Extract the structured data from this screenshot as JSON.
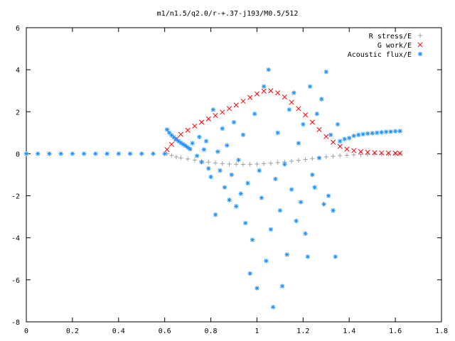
{
  "chart_data": {
    "type": "scatter",
    "title": "m1/n1.5/q2.0/r-+.37-j193/M0.5/512",
    "xlabel": "",
    "ylabel": "",
    "xlim": [
      0,
      1.8
    ],
    "ylim": [
      -8,
      6
    ],
    "x_ticks": [
      "0",
      "0.2",
      "0.4",
      "0.6",
      "0.8",
      "1",
      "1.2",
      "1.4",
      "1.6",
      "1.8"
    ],
    "y_ticks": [
      "6",
      "4",
      "2",
      "0",
      "-2",
      "-4",
      "-6",
      "-8"
    ],
    "grid": false,
    "legend_position": "top-right",
    "series": [
      {
        "name": "R stress/E",
        "marker": "+",
        "color": "#a0a0a0",
        "points": [
          [
            0.61,
            0.0
          ],
          [
            0.63,
            -0.08
          ],
          [
            0.65,
            -0.15
          ],
          [
            0.67,
            -0.2
          ],
          [
            0.7,
            -0.25
          ],
          [
            0.73,
            -0.3
          ],
          [
            0.76,
            -0.35
          ],
          [
            0.79,
            -0.4
          ],
          [
            0.82,
            -0.44
          ],
          [
            0.85,
            -0.47
          ],
          [
            0.88,
            -0.49
          ],
          [
            0.91,
            -0.5
          ],
          [
            0.94,
            -0.51
          ],
          [
            0.97,
            -0.5
          ],
          [
            1.0,
            -0.49
          ],
          [
            1.03,
            -0.47
          ],
          [
            1.06,
            -0.45
          ],
          [
            1.09,
            -0.42
          ],
          [
            1.12,
            -0.39
          ],
          [
            1.15,
            -0.35
          ],
          [
            1.18,
            -0.31
          ],
          [
            1.21,
            -0.27
          ],
          [
            1.24,
            -0.23
          ],
          [
            1.27,
            -0.19
          ],
          [
            1.3,
            -0.15
          ],
          [
            1.33,
            -0.12
          ],
          [
            1.36,
            -0.09
          ],
          [
            1.39,
            -0.07
          ],
          [
            1.42,
            -0.05
          ],
          [
            1.45,
            -0.04
          ],
          [
            1.48,
            -0.03
          ],
          [
            1.51,
            -0.02
          ],
          [
            1.54,
            -0.02
          ],
          [
            1.57,
            -0.01
          ],
          [
            1.6,
            -0.01
          ],
          [
            1.62,
            0.0
          ]
        ]
      },
      {
        "name": "G work/E",
        "marker": "x",
        "color": "#ff0000",
        "points": [
          [
            0.61,
            0.2
          ],
          [
            0.63,
            0.45
          ],
          [
            0.65,
            0.7
          ],
          [
            0.67,
            0.92
          ],
          [
            0.7,
            1.12
          ],
          [
            0.73,
            1.32
          ],
          [
            0.76,
            1.5
          ],
          [
            0.79,
            1.66
          ],
          [
            0.82,
            1.82
          ],
          [
            0.85,
            1.98
          ],
          [
            0.88,
            2.15
          ],
          [
            0.91,
            2.32
          ],
          [
            0.94,
            2.5
          ],
          [
            0.97,
            2.68
          ],
          [
            1.0,
            2.85
          ],
          [
            1.03,
            2.98
          ],
          [
            1.06,
            3.0
          ],
          [
            1.09,
            2.9
          ],
          [
            1.12,
            2.7
          ],
          [
            1.15,
            2.45
          ],
          [
            1.18,
            2.15
          ],
          [
            1.21,
            1.85
          ],
          [
            1.24,
            1.5
          ],
          [
            1.27,
            1.15
          ],
          [
            1.3,
            0.82
          ],
          [
            1.33,
            0.55
          ],
          [
            1.36,
            0.35
          ],
          [
            1.39,
            0.22
          ],
          [
            1.42,
            0.15
          ],
          [
            1.45,
            0.1
          ],
          [
            1.48,
            0.07
          ],
          [
            1.51,
            0.05
          ],
          [
            1.54,
            0.04
          ],
          [
            1.57,
            0.03
          ],
          [
            1.6,
            0.03
          ],
          [
            1.62,
            0.02
          ]
        ]
      },
      {
        "name": "Acoustic flux/E",
        "marker": "*",
        "color": "#1e90ff",
        "points": [
          [
            0.0,
            0.0
          ],
          [
            0.05,
            0.0
          ],
          [
            0.1,
            0.0
          ],
          [
            0.15,
            0.0
          ],
          [
            0.2,
            0.0
          ],
          [
            0.25,
            0.0
          ],
          [
            0.3,
            0.0
          ],
          [
            0.35,
            0.0
          ],
          [
            0.4,
            0.0
          ],
          [
            0.45,
            0.0
          ],
          [
            0.5,
            0.0
          ],
          [
            0.55,
            0.0
          ],
          [
            0.6,
            0.0
          ],
          [
            0.61,
            1.15
          ],
          [
            0.62,
            1.0
          ],
          [
            0.63,
            0.88
          ],
          [
            0.64,
            0.78
          ],
          [
            0.65,
            0.68
          ],
          [
            0.66,
            0.6
          ],
          [
            0.67,
            0.52
          ],
          [
            0.68,
            0.45
          ],
          [
            0.69,
            0.38
          ],
          [
            0.7,
            0.3
          ],
          [
            0.71,
            0.22
          ],
          [
            0.72,
            0.5
          ],
          [
            0.74,
            -0.1
          ],
          [
            0.75,
            0.8
          ],
          [
            0.76,
            -0.4
          ],
          [
            0.77,
            0.2
          ],
          [
            0.78,
            0.6
          ],
          [
            0.79,
            -0.7
          ],
          [
            0.8,
            -1.1
          ],
          [
            0.81,
            2.1
          ],
          [
            0.82,
            -2.9
          ],
          [
            0.83,
            0.1
          ],
          [
            0.84,
            -0.8
          ],
          [
            0.85,
            1.2
          ],
          [
            0.86,
            -1.6
          ],
          [
            0.87,
            0.4
          ],
          [
            0.88,
            -2.2
          ],
          [
            0.89,
            -1.0
          ],
          [
            0.9,
            1.5
          ],
          [
            0.91,
            -2.5
          ],
          [
            0.92,
            -0.3
          ],
          [
            0.93,
            -1.9
          ],
          [
            0.94,
            0.9
          ],
          [
            0.95,
            -3.3
          ],
          [
            0.96,
            -1.4
          ],
          [
            0.97,
            -5.7
          ],
          [
            0.98,
            -4.1
          ],
          [
            0.99,
            1.9
          ],
          [
            1.0,
            -6.4
          ],
          [
            1.01,
            -0.8
          ],
          [
            1.02,
            -2.1
          ],
          [
            1.03,
            3.2
          ],
          [
            1.04,
            -5.1
          ],
          [
            1.05,
            4.0
          ],
          [
            1.06,
            -3.6
          ],
          [
            1.07,
            -7.3
          ],
          [
            1.08,
            -1.2
          ],
          [
            1.09,
            1.0
          ],
          [
            1.1,
            -2.7
          ],
          [
            1.11,
            -6.3
          ],
          [
            1.12,
            -0.5
          ],
          [
            1.13,
            -4.8
          ],
          [
            1.14,
            2.1
          ],
          [
            1.15,
            -1.7
          ],
          [
            1.16,
            2.9
          ],
          [
            1.17,
            -3.2
          ],
          [
            1.18,
            0.5
          ],
          [
            1.19,
            -2.3
          ],
          [
            1.2,
            1.4
          ],
          [
            1.21,
            -3.8
          ],
          [
            1.22,
            -4.9
          ],
          [
            1.23,
            3.2
          ],
          [
            1.24,
            -1.0
          ],
          [
            1.25,
            -1.6
          ],
          [
            1.26,
            1.9
          ],
          [
            1.27,
            -0.2
          ],
          [
            1.28,
            2.6
          ],
          [
            1.29,
            -2.4
          ],
          [
            1.3,
            3.9
          ],
          [
            1.31,
            -2.0
          ],
          [
            1.32,
            0.9
          ],
          [
            1.33,
            -2.7
          ],
          [
            1.34,
            -4.9
          ],
          [
            1.35,
            1.4
          ],
          [
            1.36,
            0.6
          ],
          [
            1.38,
            0.7
          ],
          [
            1.4,
            0.75
          ],
          [
            1.42,
            0.85
          ],
          [
            1.44,
            0.9
          ],
          [
            1.46,
            0.93
          ],
          [
            1.48,
            0.96
          ],
          [
            1.5,
            0.98
          ],
          [
            1.52,
            1.0
          ],
          [
            1.54,
            1.02
          ],
          [
            1.56,
            1.04
          ],
          [
            1.58,
            1.05
          ],
          [
            1.6,
            1.07
          ],
          [
            1.62,
            1.08
          ]
        ]
      }
    ]
  }
}
